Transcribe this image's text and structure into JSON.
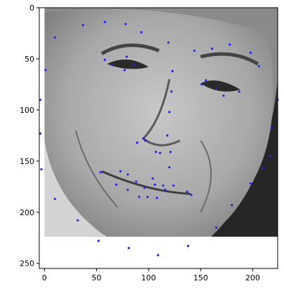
{
  "chart_data": {
    "type": "scatter",
    "title": "",
    "xlabel": "",
    "ylabel": "",
    "xlim": [
      -5,
      224
    ],
    "ylim": [
      255,
      0
    ],
    "y_inverted": true,
    "grid": false,
    "legend": "none",
    "background_image": "grayscale-face-photo",
    "image_extent": {
      "x": [
        0,
        224
      ],
      "y": [
        0,
        224
      ]
    },
    "x_ticks": [
      0,
      50,
      100,
      150,
      200
    ],
    "x_tick_labels": [
      "0",
      "50",
      "100",
      "150",
      "200"
    ],
    "y_ticks": [
      0,
      50,
      100,
      150,
      200,
      250
    ],
    "y_tick_labels": [
      "0",
      "50",
      "100",
      "150",
      "200",
      "250"
    ],
    "series": [
      {
        "marker_color": "#1f1fff",
        "points": [
          [
            -4,
            90
          ],
          [
            -4,
            123
          ],
          [
            -3,
            158
          ],
          [
            1,
            61
          ],
          [
            10,
            29
          ],
          [
            10,
            187
          ],
          [
            32,
            208
          ],
          [
            37,
            17
          ],
          [
            52,
            228
          ],
          [
            54,
            161
          ],
          [
            58,
            51
          ],
          [
            58,
            14
          ],
          [
            65,
            56
          ],
          [
            69,
            173
          ],
          [
            73,
            160
          ],
          [
            78,
            16
          ],
          [
            77,
            61
          ],
          [
            79,
            48
          ],
          [
            80,
            163
          ],
          [
            80,
            178
          ],
          [
            81,
            235
          ],
          [
            86,
            56
          ],
          [
            88,
            170
          ],
          [
            89,
            132
          ],
          [
            91,
            185
          ],
          [
            93,
            24
          ],
          [
            95,
            128
          ],
          [
            96,
            176
          ],
          [
            97,
            130
          ],
          [
            99,
            185
          ],
          [
            104,
            167
          ],
          [
            106,
            173
          ],
          [
            107,
            141
          ],
          [
            108,
            186
          ],
          [
            109,
            242
          ],
          [
            111,
            142
          ],
          [
            114,
            174
          ],
          [
            116,
            178
          ],
          [
            118,
            125
          ],
          [
            119,
            34
          ],
          [
            120,
            102
          ],
          [
            120,
            156
          ],
          [
            121,
            141
          ],
          [
            122,
            82
          ],
          [
            123,
            62
          ],
          [
            124,
            174
          ],
          [
            137,
            180
          ],
          [
            138,
            233
          ],
          [
            141,
            183
          ],
          [
            144,
            42
          ],
          [
            151,
            75
          ],
          [
            155,
            71
          ],
          [
            161,
            40
          ],
          [
            165,
            79
          ],
          [
            165,
            215
          ],
          [
            172,
            86
          ],
          [
            178,
            36
          ],
          [
            180,
            193
          ],
          [
            187,
            82
          ],
          [
            198,
            44
          ],
          [
            198,
            172
          ],
          [
            206,
            57
          ],
          [
            210,
            157
          ],
          [
            217,
            145
          ],
          [
            218,
            117
          ],
          [
            224,
            90
          ]
        ]
      }
    ]
  }
}
